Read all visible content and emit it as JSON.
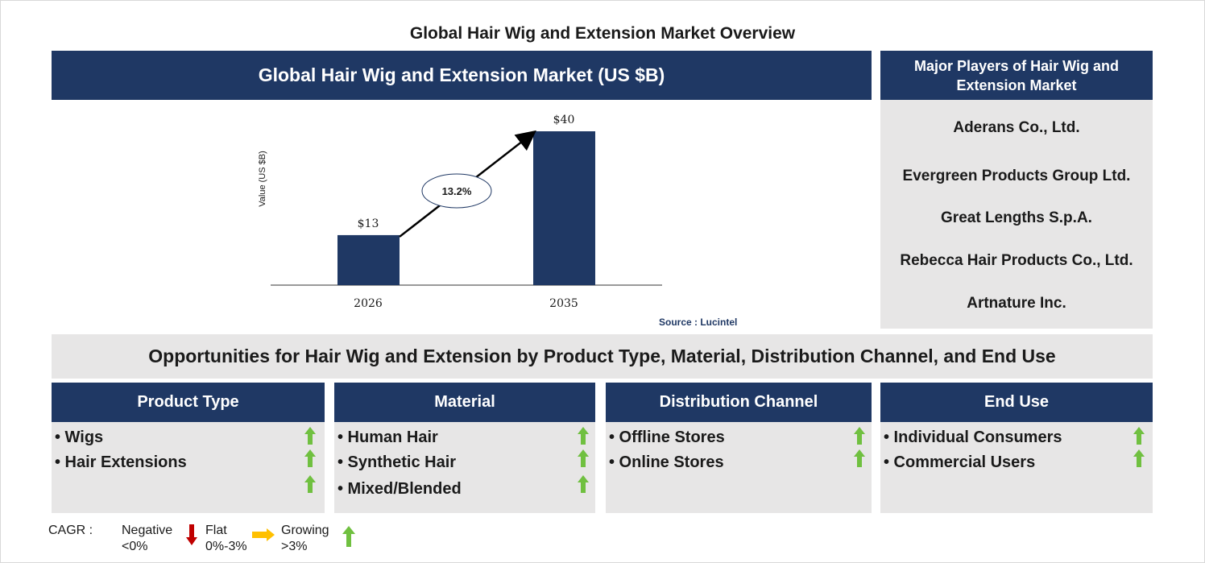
{
  "title": "Global Hair Wig and Extension Market Overview",
  "chart_header": "Global Hair Wig and Extension Market (US $B)",
  "chart_data": {
    "type": "bar",
    "categories": [
      "2026",
      "2035"
    ],
    "values": [
      13,
      40
    ],
    "value_labels": [
      "$13",
      "$40"
    ],
    "ylabel": "Value (US $B)",
    "xlabel": "",
    "cagr_label": "13.2%",
    "ylim": [
      0,
      40
    ],
    "grid": false,
    "bar_color": "#1f3864"
  },
  "source": "Source : Lucintel",
  "players": {
    "header": "Major Players of Hair Wig and Extension Market",
    "items": [
      "Aderans Co., Ltd.",
      "Evergreen Products Group Ltd.",
      "Great Lengths S.p.A.",
      "Rebecca Hair Products Co., Ltd.",
      "Artnature Inc."
    ]
  },
  "opportunities": {
    "banner": "Opportunities for Hair Wig and Extension by Product Type, Material, Distribution Channel, and End Use",
    "segments": [
      {
        "title": "Product Type",
        "items": [
          "• Wigs",
          "• Hair Extensions"
        ],
        "arrows": 3
      },
      {
        "title": "Material",
        "items": [
          "• Human Hair",
          "• Synthetic Hair",
          "• Mixed/Blended"
        ],
        "arrows": 3
      },
      {
        "title": "Distribution Channel",
        "items": [
          "• Offline Stores",
          "• Online Stores"
        ],
        "arrows": 2
      },
      {
        "title": "End Use",
        "items": [
          "• Individual Consumers",
          "• Commercial Users"
        ],
        "arrows": 2
      }
    ]
  },
  "legend": {
    "cagr": "CAGR :",
    "negative": [
      "Negative",
      "<0%"
    ],
    "flat": [
      "Flat",
      "0%-3%"
    ],
    "growing": [
      "Growing",
      ">3%"
    ],
    "colors": {
      "navy": "#1f3864",
      "grey": "#e7e6e6",
      "up": "#70c040",
      "down": "#c00000",
      "flat": "#ffc000"
    }
  }
}
